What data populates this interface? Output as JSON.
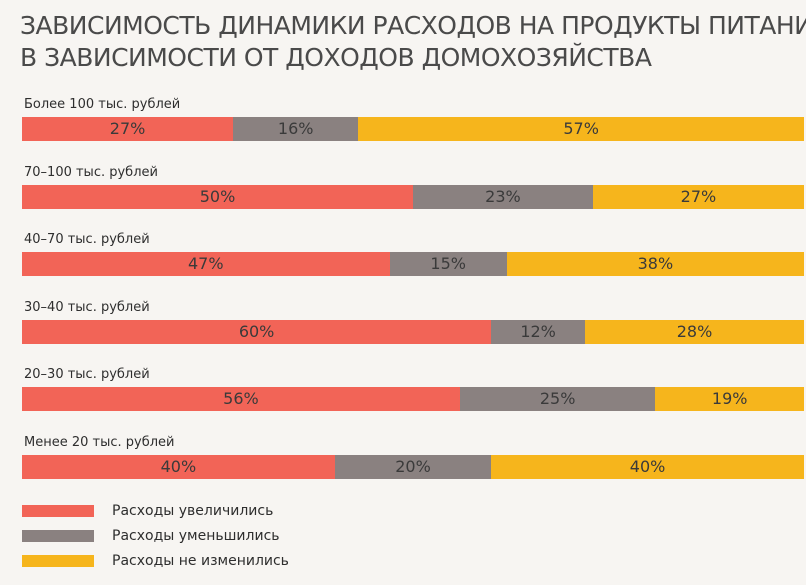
{
  "chart_data": {
    "type": "bar",
    "orientation": "horizontal",
    "stacked": true,
    "title": "ЗАВИСИМОСТЬ ДИНАМИКИ РАСХОДОВ НА ПРОДУКТЫ ПИТАНИЯ\nВ ЗАВИСИМОСТИ ОТ ДОХОДОВ ДОМОХОЗЯЙСТВА",
    "title_lines": [
      "ЗАВИСИМОСТЬ ДИНАМИКИ РАСХОДОВ НА ПРОДУКТЫ ПИТАНИЯ",
      "В ЗАВИСИМОСТИ ОТ ДОХОДОВ ДОМОХОЗЯЙСТВА"
    ],
    "categories": [
      "Более 100 тыс. рублей",
      "70–100 тыс. рублей",
      "40–70 тыс. рублей",
      "30–40 тыс. рублей",
      "20–30 тыс. рублей",
      "Менее 20 тыс. рублей"
    ],
    "series": [
      {
        "name": "Расходы увеличились",
        "color": "#f26457",
        "values": [
          27,
          50,
          47,
          60,
          56,
          40
        ]
      },
      {
        "name": "Расходы уменьшились",
        "color": "#8a8180",
        "values": [
          16,
          23,
          15,
          12,
          25,
          20
        ]
      },
      {
        "name": "Расходы не изменились",
        "color": "#f6b51c",
        "values": [
          57,
          27,
          38,
          28,
          19,
          40
        ]
      }
    ],
    "value_suffix": "%",
    "xlim": [
      0,
      100
    ],
    "legend_position": "bottom-left",
    "grid": false
  }
}
